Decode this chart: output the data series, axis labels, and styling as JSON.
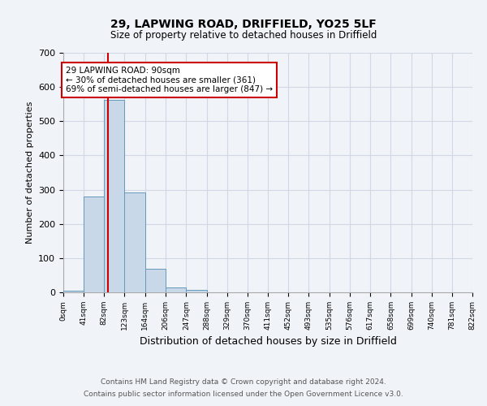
{
  "title1": "29, LAPWING ROAD, DRIFFIELD, YO25 5LF",
  "title2": "Size of property relative to detached houses in Driffield",
  "xlabel": "Distribution of detached houses by size in Driffield",
  "ylabel": "Number of detached properties",
  "bin_edges": [
    0,
    41,
    82,
    123,
    164,
    206,
    247,
    288,
    329,
    370,
    411,
    452,
    493,
    535,
    576,
    617,
    658,
    699,
    740,
    781,
    822
  ],
  "bin_labels": [
    "0sqm",
    "41sqm",
    "82sqm",
    "123sqm",
    "164sqm",
    "206sqm",
    "247sqm",
    "288sqm",
    "329sqm",
    "370sqm",
    "411sqm",
    "452sqm",
    "493sqm",
    "535sqm",
    "576sqm",
    "617sqm",
    "658sqm",
    "699sqm",
    "740sqm",
    "781sqm",
    "822sqm"
  ],
  "counts": [
    5,
    281,
    562,
    291,
    68,
    14,
    8,
    0,
    0,
    0,
    0,
    0,
    0,
    0,
    0,
    0,
    0,
    0,
    0,
    0
  ],
  "bar_color": "#c8d8e8",
  "bar_edge_color": "#6699bb",
  "vline_x": 90,
  "vline_color": "#cc0000",
  "annotation_line1": "29 LAPWING ROAD: 90sqm",
  "annotation_line2": "← 30% of detached houses are smaller (361)",
  "annotation_line3": "69% of semi-detached houses are larger (847) →",
  "annotation_box_color": "#ffffff",
  "annotation_box_edge": "#cc0000",
  "ylim": [
    0,
    700
  ],
  "yticks": [
    0,
    100,
    200,
    300,
    400,
    500,
    600,
    700
  ],
  "grid_color": "#d0d8e8",
  "bg_color": "#f0f4f8",
  "footer1": "Contains HM Land Registry data © Crown copyright and database right 2024.",
  "footer2": "Contains public sector information licensed under the Open Government Licence v3.0."
}
